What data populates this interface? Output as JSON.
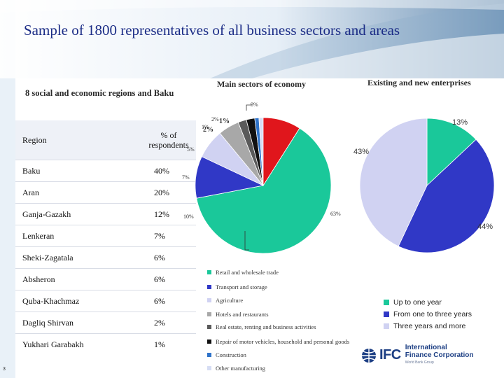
{
  "slide": {
    "title": "Sample of 1800 representatives of all business sectors and areas",
    "footer": "3"
  },
  "colors": {
    "title": "#1b2c86",
    "teal": "#1ac89a",
    "navy": "#3038c6",
    "lavender": "#d0d2f2",
    "red": "#e0161c"
  },
  "regions_table": {
    "heading": "8 social and economic regions and Baku",
    "col_region": "Region",
    "col_pct": "% of respondents",
    "rows": [
      {
        "region": "Baku",
        "pct": "40%"
      },
      {
        "region": "Aran",
        "pct": "20%"
      },
      {
        "region": "Ganja-Gazakh",
        "pct": "12%"
      },
      {
        "region": "Lenkeran",
        "pct": "7%"
      },
      {
        "region": "Sheki-Zagatala",
        "pct": "6%"
      },
      {
        "region": "Absheron",
        "pct": "6%"
      },
      {
        "region": "Quba-Khachmaz",
        "pct": "6%"
      },
      {
        "region": "Dagliq Shirvan",
        "pct": "2%"
      },
      {
        "region": "Yukhari Garabakh",
        "pct": "1%"
      }
    ]
  },
  "chart_data": [
    {
      "type": "pie",
      "title": "Main sectors of economy",
      "slices": [
        {
          "name": "Retail and wholesale trade",
          "value": 63,
          "label": "63%",
          "color": "#1ac89a"
        },
        {
          "name": "Transport and storage",
          "value": 10,
          "label": "10%",
          "color": "#3038c6"
        },
        {
          "name": "Agriculture",
          "value": 7,
          "label": "7%",
          "color": "#d0d2f2"
        },
        {
          "name": "Hotels and restaurants",
          "value": 5,
          "label": "5%",
          "color": "#a8a8a8"
        },
        {
          "name": "Real estate, renting and business activities",
          "value": 2,
          "label": "2%",
          "color": "#5a5a5a"
        },
        {
          "name": "Repair of motor vehicles, household and personal goods",
          "value": 2,
          "label": "2%",
          "color": "#111111"
        },
        {
          "name": "Construction",
          "value": 1,
          "label": "1%",
          "color": "#2f73c9"
        },
        {
          "name": "Other manufacturing",
          "value": 1,
          "label": "1%",
          "color": "#d6ddf4"
        },
        {
          "name": "",
          "value": 9,
          "label": "9%",
          "color": "#e0161c"
        }
      ]
    },
    {
      "type": "pie",
      "title": "Existing and new enterprises",
      "slices": [
        {
          "name": "Up to one year",
          "value": 13,
          "label": "13%",
          "color": "#1ac89a"
        },
        {
          "name": "From one to three years",
          "value": 44,
          "label": "44%",
          "color": "#3038c6"
        },
        {
          "name": "Three years and more",
          "value": 43,
          "label": "43%",
          "color": "#d0d2f2"
        }
      ]
    }
  ],
  "logo": {
    "name": "IFC",
    "corp_line1": "International",
    "corp_line2": "Finance Corporation",
    "corp_line3": "World Bank Group"
  }
}
